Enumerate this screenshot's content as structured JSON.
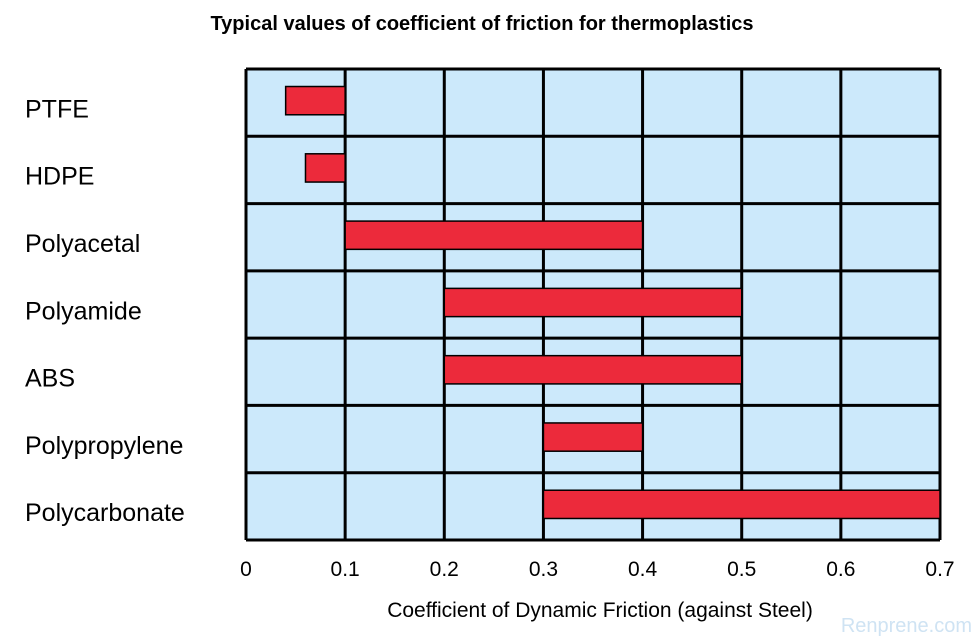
{
  "chart_data": {
    "type": "bar",
    "orientation": "horizontal-range",
    "title": "Typical values of coefficient of friction for thermoplastics",
    "xlabel": "Coefficient of Dynamic Friction (against Steel)",
    "ylabel": "",
    "xlim": [
      0,
      0.7
    ],
    "xticks": [
      "0",
      "0.1",
      "0.2",
      "0.3",
      "0.4",
      "0.5",
      "0.6",
      "0.7"
    ],
    "grid": true,
    "categories": [
      "PTFE",
      "HDPE",
      "Polyacetal",
      "Polyamide",
      "ABS",
      "Polypropylene",
      "Polycarbonate"
    ],
    "ranges": [
      [
        0.04,
        0.1
      ],
      [
        0.06,
        0.1
      ],
      [
        0.1,
        0.4
      ],
      [
        0.2,
        0.5
      ],
      [
        0.2,
        0.5
      ],
      [
        0.3,
        0.4
      ],
      [
        0.3,
        0.7
      ]
    ],
    "colors": {
      "plot_background": "#cce9fb",
      "bar_fill": "#ec2a3b",
      "grid": "#000000"
    }
  },
  "watermark": "Renprene.com"
}
